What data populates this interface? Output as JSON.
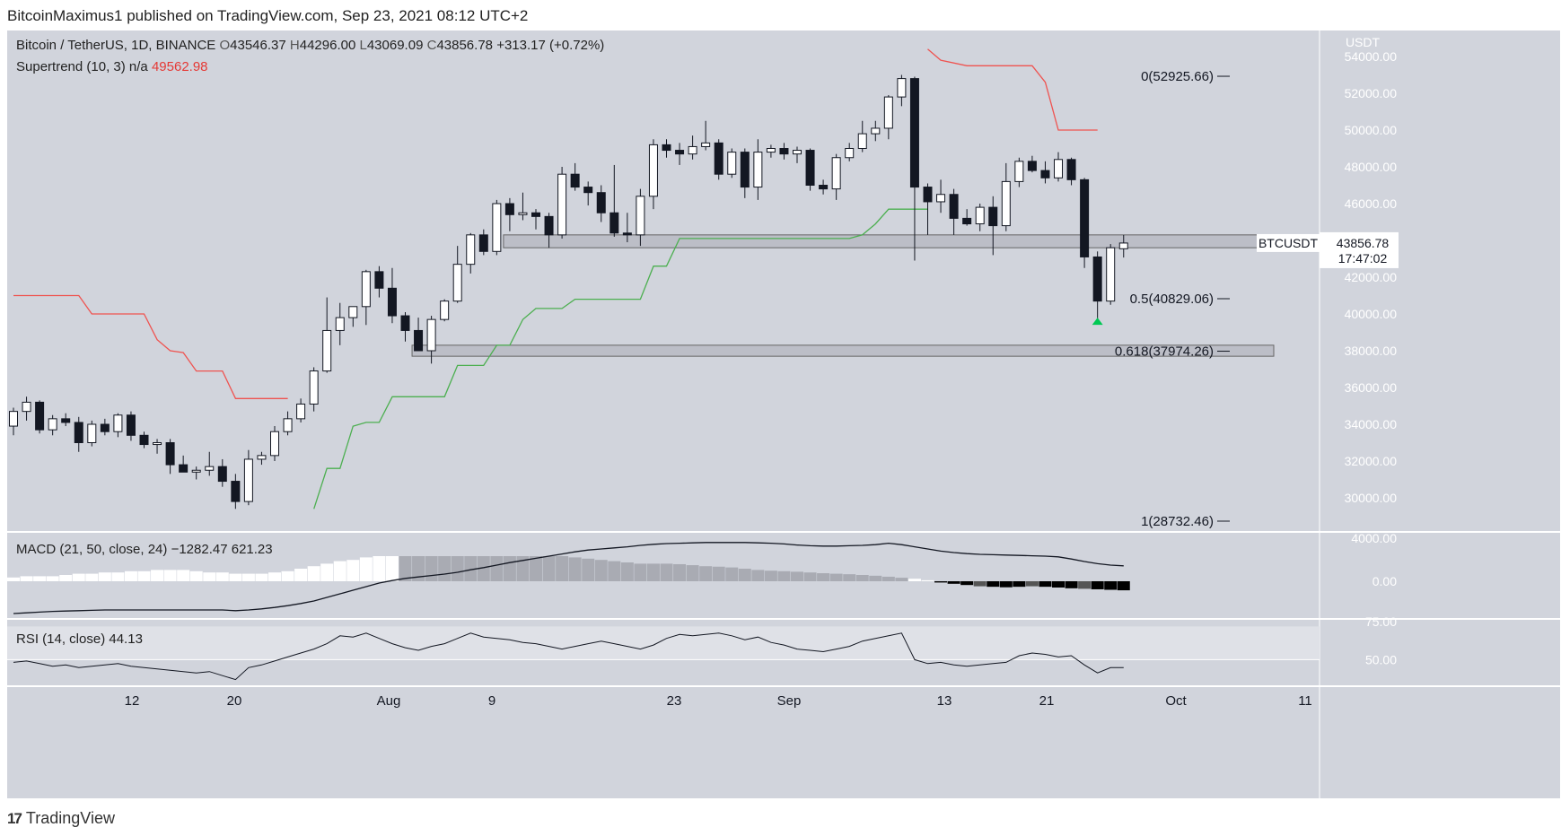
{
  "header": {
    "publisher": "BitcoinMaximus1 published on TradingView.com, Sep 23, 2021 08:12 UTC+2"
  },
  "footer": {
    "brand": "TradingView",
    "logo": "tradingview-logo-icon"
  },
  "colors": {
    "background": "#d1d4dc",
    "bull": "#ffffff",
    "bear": "#131722",
    "supertrend_up": "#4caf50",
    "supertrend_down": "#ef5350",
    "green_arrow": "#00c853"
  },
  "main": {
    "legend": {
      "symbol": "Bitcoin / TetherUS, 1D, BINANCE",
      "o_label": "O",
      "o_value": "43546.37",
      "h_label": "H",
      "h_value": "44296.00",
      "l_label": "L",
      "l_value": "43069.09",
      "c_label": "C",
      "c_value": "43856.78",
      "change": "+313.17 (+0.72%)"
    },
    "supertrend": {
      "label": "Supertrend (10, 3)",
      "na": "n/a",
      "value": "49562.98"
    },
    "price_tag": {
      "symbol": "BTCUSDT",
      "price": "43856.78",
      "countdown": "17:47:02"
    },
    "axis_unit": "USDT"
  },
  "macd": {
    "label": "MACD (21, 50, close, 24)",
    "v1": "−1282.47",
    "v2": "621.23"
  },
  "rsi": {
    "label": "RSI (14, close)",
    "value": "44.13"
  },
  "chart_data": {
    "type": "candlestick",
    "y_range": [
      28000,
      55000
    ],
    "y_ticks": [
      "54000.00",
      "52000.00",
      "50000.00",
      "48000.00",
      "46000.00",
      "44000.00",
      "42000.00",
      "40000.00",
      "38000.00",
      "36000.00",
      "34000.00",
      "32000.00",
      "30000.00"
    ],
    "x_ticks": [
      "12",
      "20",
      "Aug",
      "9",
      "23",
      "Sep",
      "13",
      "21",
      "Oct",
      "11"
    ],
    "fib_levels": [
      {
        "label": "0(52925.66)",
        "value": 52925.66
      },
      {
        "label": "0.5(40829.06)",
        "value": 40829.06
      },
      {
        "label": "0.618(37974.26)",
        "value": 37974.26
      },
      {
        "label": "1(28732.46)",
        "value": 28732.46
      }
    ],
    "zones": [
      {
        "from": 43600,
        "to": 44300,
        "start_index": 38
      },
      {
        "from": 37700,
        "to": 38300,
        "start_index": 31
      }
    ],
    "candles": [
      [
        33900,
        34900,
        33400,
        34700
      ],
      [
        34700,
        35500,
        34200,
        35200
      ],
      [
        35200,
        35300,
        33500,
        33700
      ],
      [
        33700,
        34500,
        33400,
        34300
      ],
      [
        34300,
        34600,
        33900,
        34100
      ],
      [
        34100,
        34400,
        32500,
        33000
      ],
      [
        33000,
        34200,
        32800,
        34000
      ],
      [
        34000,
        34300,
        33400,
        33600
      ],
      [
        33600,
        34600,
        33300,
        34500
      ],
      [
        34500,
        34700,
        33100,
        33400
      ],
      [
        33400,
        33600,
        32700,
        32900
      ],
      [
        32900,
        33200,
        32400,
        33000
      ],
      [
        33000,
        33200,
        31300,
        31800
      ],
      [
        31800,
        32300,
        31400,
        31400
      ],
      [
        31400,
        31700,
        31000,
        31500
      ],
      [
        31500,
        32500,
        31200,
        31700
      ],
      [
        31700,
        32100,
        30600,
        30900
      ],
      [
        30900,
        31300,
        29400,
        29800
      ],
      [
        29800,
        32600,
        29600,
        32100
      ],
      [
        32100,
        32500,
        31800,
        32300
      ],
      [
        32300,
        33900,
        32000,
        33600
      ],
      [
        33600,
        34700,
        33400,
        34300
      ],
      [
        34300,
        35400,
        34100,
        35100
      ],
      [
        35100,
        37100,
        34700,
        36900
      ],
      [
        36900,
        40900,
        36800,
        39100
      ],
      [
        39100,
        40600,
        38300,
        39800
      ],
      [
        39800,
        40400,
        39300,
        40400
      ],
      [
        40400,
        42400,
        39400,
        42300
      ],
      [
        42300,
        42600,
        40900,
        41400
      ],
      [
        41400,
        42500,
        39500,
        39900
      ],
      [
        39900,
        40100,
        38500,
        39100
      ],
      [
        39100,
        39800,
        38000,
        38000
      ],
      [
        38000,
        39900,
        37300,
        39700
      ],
      [
        39700,
        40800,
        39600,
        40700
      ],
      [
        40700,
        43700,
        40600,
        42700
      ],
      [
        42700,
        44400,
        42200,
        44300
      ],
      [
        44300,
        44600,
        43200,
        43400
      ],
      [
        43400,
        46200,
        43200,
        46000
      ],
      [
        46000,
        46300,
        44500,
        45400
      ],
      [
        45400,
        46600,
        45100,
        45500
      ],
      [
        45500,
        45700,
        44600,
        45300
      ],
      [
        45300,
        45500,
        43600,
        44300
      ],
      [
        44300,
        48000,
        44100,
        47600
      ],
      [
        47600,
        48200,
        46700,
        46900
      ],
      [
        46900,
        47200,
        45900,
        46600
      ],
      [
        46600,
        47000,
        45000,
        45500
      ],
      [
        45500,
        48100,
        44200,
        44400
      ],
      [
        44400,
        45500,
        43900,
        44300
      ],
      [
        44300,
        46800,
        43700,
        46400
      ],
      [
        46400,
        49500,
        45700,
        49200
      ],
      [
        49200,
        49500,
        48500,
        48900
      ],
      [
        48900,
        49300,
        48100,
        48700
      ],
      [
        48700,
        49700,
        48400,
        49100
      ],
      [
        49100,
        50500,
        48900,
        49300
      ],
      [
        49300,
        49500,
        47300,
        47600
      ],
      [
        47600,
        49000,
        47400,
        48800
      ],
      [
        48800,
        49000,
        46300,
        46900
      ],
      [
        46900,
        49500,
        46200,
        48800
      ],
      [
        48800,
        49200,
        48500,
        49000
      ],
      [
        49000,
        49300,
        48400,
        48700
      ],
      [
        48700,
        49100,
        48200,
        48900
      ],
      [
        48900,
        49000,
        46700,
        47000
      ],
      [
        47000,
        47300,
        46500,
        46800
      ],
      [
        46800,
        48700,
        46200,
        48500
      ],
      [
        48500,
        49300,
        48300,
        49000
      ],
      [
        49000,
        50500,
        48800,
        49800
      ],
      [
        49800,
        50500,
        49400,
        50100
      ],
      [
        50100,
        51900,
        49500,
        51800
      ],
      [
        51800,
        53000,
        51300,
        52800
      ],
      [
        52800,
        52900,
        42900,
        46900
      ],
      [
        46900,
        47100,
        44300,
        46100
      ],
      [
        46100,
        47300,
        45500,
        46500
      ],
      [
        46500,
        46800,
        44300,
        45200
      ],
      [
        45200,
        45700,
        44800,
        44900
      ],
      [
        44900,
        46000,
        44500,
        45800
      ],
      [
        45800,
        46400,
        43200,
        44800
      ],
      [
        44800,
        48200,
        44500,
        47200
      ],
      [
        47200,
        48500,
        46900,
        48300
      ],
      [
        48300,
        48600,
        47700,
        47800
      ],
      [
        47800,
        48300,
        47100,
        47400
      ],
      [
        47400,
        48800,
        47200,
        48400
      ],
      [
        48400,
        48500,
        47000,
        47300
      ],
      [
        47300,
        47400,
        42500,
        43100
      ],
      [
        43100,
        43400,
        39600,
        40700
      ],
      [
        40700,
        43800,
        40500,
        43600
      ],
      [
        43546,
        44296,
        43069,
        43857
      ]
    ],
    "supertrend_down_1": [
      [
        0,
        41000
      ],
      [
        5,
        41000
      ],
      [
        6,
        40000
      ],
      [
        10,
        40000
      ],
      [
        11,
        38600
      ],
      [
        12,
        38000
      ],
      [
        13,
        37900
      ],
      [
        14,
        36900
      ],
      [
        16,
        36900
      ],
      [
        17,
        35400
      ],
      [
        21,
        35400
      ]
    ],
    "supertrend_up": [
      [
        23,
        29400
      ],
      [
        24,
        31600
      ],
      [
        25,
        31600
      ],
      [
        26,
        33900
      ],
      [
        27,
        34100
      ],
      [
        28,
        34100
      ],
      [
        29,
        35500
      ],
      [
        33,
        35500
      ],
      [
        34,
        37200
      ],
      [
        36,
        37200
      ],
      [
        37,
        38300
      ],
      [
        38,
        38300
      ],
      [
        39,
        39700
      ],
      [
        40,
        40300
      ],
      [
        41,
        40300
      ],
      [
        42,
        40300
      ],
      [
        43,
        40800
      ],
      [
        48,
        40800
      ],
      [
        49,
        42600
      ],
      [
        50,
        42600
      ],
      [
        51,
        44100
      ],
      [
        64,
        44100
      ],
      [
        65,
        44300
      ],
      [
        66,
        44900
      ],
      [
        67,
        45700
      ],
      [
        70,
        45700
      ]
    ],
    "supertrend_down_2": [
      [
        70,
        54400
      ],
      [
        71,
        53800
      ],
      [
        73,
        53500
      ],
      [
        76,
        53500
      ],
      [
        78,
        53500
      ],
      [
        79,
        52600
      ],
      [
        80,
        50000
      ],
      [
        83,
        50000
      ]
    ],
    "macd_hist": [
      0.15,
      0.2,
      0.2,
      0.2,
      0.25,
      0.3,
      0.3,
      0.35,
      0.35,
      0.4,
      0.4,
      0.45,
      0.45,
      0.45,
      0.4,
      0.35,
      0.35,
      0.3,
      0.3,
      0.3,
      0.35,
      0.4,
      0.5,
      0.6,
      0.7,
      0.8,
      0.85,
      0.95,
      1.0,
      1.0,
      1.0,
      1.0,
      1.0,
      1.0,
      1.0,
      1.0,
      1.0,
      1.0,
      1.0,
      1.0,
      1.0,
      1.0,
      1.0,
      0.95,
      0.9,
      0.85,
      0.8,
      0.75,
      0.7,
      0.7,
      0.7,
      0.68,
      0.64,
      0.6,
      0.58,
      0.55,
      0.5,
      0.45,
      0.42,
      0.4,
      0.38,
      0.35,
      0.32,
      0.3,
      0.28,
      0.25,
      0.22,
      0.18,
      0.14,
      0.1,
      0.04,
      -0.05,
      -0.1,
      -0.15,
      -0.2,
      -0.22,
      -0.24,
      -0.22,
      -0.2,
      -0.22,
      -0.25,
      -0.28,
      -0.3,
      -0.32,
      -0.34,
      -0.36
    ],
    "macd_line": [
      -0.9,
      -0.88,
      -0.86,
      -0.84,
      -0.83,
      -0.82,
      -0.81,
      -0.8,
      -0.8,
      -0.8,
      -0.8,
      -0.8,
      -0.8,
      -0.8,
      -0.8,
      -0.8,
      -0.8,
      -0.82,
      -0.8,
      -0.77,
      -0.73,
      -0.68,
      -0.62,
      -0.55,
      -0.45,
      -0.35,
      -0.25,
      -0.15,
      -0.05,
      0.02,
      0.08,
      0.12,
      0.16,
      0.2,
      0.25,
      0.32,
      0.38,
      0.45,
      0.52,
      0.58,
      0.64,
      0.7,
      0.76,
      0.82,
      0.87,
      0.9,
      0.93,
      0.96,
      1.0,
      1.03,
      1.05,
      1.06,
      1.07,
      1.08,
      1.08,
      1.08,
      1.08,
      1.07,
      1.06,
      1.04,
      1.01,
      0.99,
      0.98,
      0.98,
      0.99,
      1.0,
      1.02,
      1.06,
      1.02,
      0.96,
      0.9,
      0.84,
      0.8,
      0.77,
      0.75,
      0.74,
      0.73,
      0.72,
      0.71,
      0.7,
      0.68,
      0.62,
      0.55,
      0.49,
      0.45,
      0.43
    ],
    "rsi_values": [
      48,
      49,
      47,
      45,
      46,
      44,
      45,
      46,
      47,
      45,
      44,
      43,
      42,
      41,
      40,
      41,
      38,
      35,
      44,
      46,
      49,
      52,
      55,
      58,
      62,
      68,
      67,
      70,
      66,
      62,
      59,
      57,
      60,
      62,
      66,
      70,
      67,
      66,
      65,
      63,
      62,
      60,
      58,
      60,
      62,
      64,
      62,
      60,
      58,
      61,
      66,
      69,
      68,
      69,
      70,
      68,
      65,
      67,
      63,
      61,
      58,
      57,
      56,
      58,
      60,
      64,
      66,
      68,
      70,
      50,
      47,
      48,
      46,
      45,
      46,
      47,
      48,
      53,
      55,
      54,
      52,
      53,
      46,
      40,
      44,
      44
    ]
  }
}
